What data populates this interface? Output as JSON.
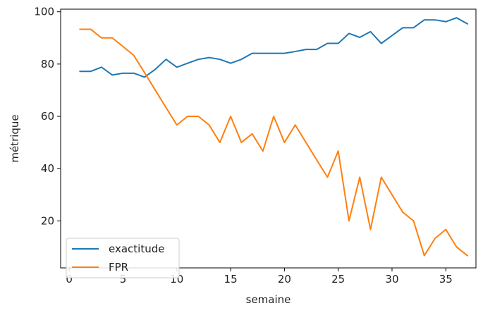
{
  "chart_data": {
    "type": "line",
    "xlabel": "semaine",
    "ylabel": "métrique",
    "xlim": [
      -0.8,
      37.8
    ],
    "ylim": [
      2,
      101
    ],
    "xticks": [
      0,
      5,
      10,
      15,
      20,
      25,
      30,
      35
    ],
    "yticks": [
      20,
      40,
      60,
      80,
      100
    ],
    "grid": false,
    "legend_position": "lower-left",
    "x": [
      1,
      2,
      3,
      4,
      5,
      6,
      7,
      8,
      9,
      10,
      11,
      12,
      13,
      14,
      15,
      16,
      17,
      18,
      19,
      20,
      21,
      22,
      23,
      24,
      25,
      26,
      27,
      28,
      29,
      30,
      31,
      32,
      33,
      34,
      35,
      36,
      37
    ],
    "series": [
      {
        "name": "exactitude",
        "color": "#1f77b4",
        "values": [
          77.2,
          77.2,
          78.8,
          75.8,
          76.5,
          76.5,
          75.0,
          78.0,
          81.8,
          78.8,
          80.3,
          81.8,
          82.5,
          81.8,
          80.3,
          81.8,
          84.1,
          84.1,
          84.1,
          84.1,
          84.8,
          85.6,
          85.6,
          87.9,
          87.9,
          91.7,
          90.2,
          92.4,
          87.9,
          90.9,
          93.9,
          93.9,
          96.9,
          96.9,
          96.2,
          97.7,
          95.4
        ]
      },
      {
        "name": "FPR",
        "color": "#ff7f0e",
        "values": [
          93.3,
          93.3,
          90.0,
          90.0,
          86.7,
          83.3,
          76.7,
          70.0,
          63.3,
          56.7,
          60.0,
          60.0,
          56.7,
          50.0,
          60.0,
          50.0,
          53.3,
          46.7,
          60.0,
          50.0,
          56.7,
          50.0,
          43.3,
          36.7,
          46.7,
          20.0,
          36.7,
          16.7,
          36.7,
          30.0,
          23.3,
          20.0,
          6.7,
          13.3,
          16.7,
          10.0,
          6.7
        ]
      }
    ]
  }
}
